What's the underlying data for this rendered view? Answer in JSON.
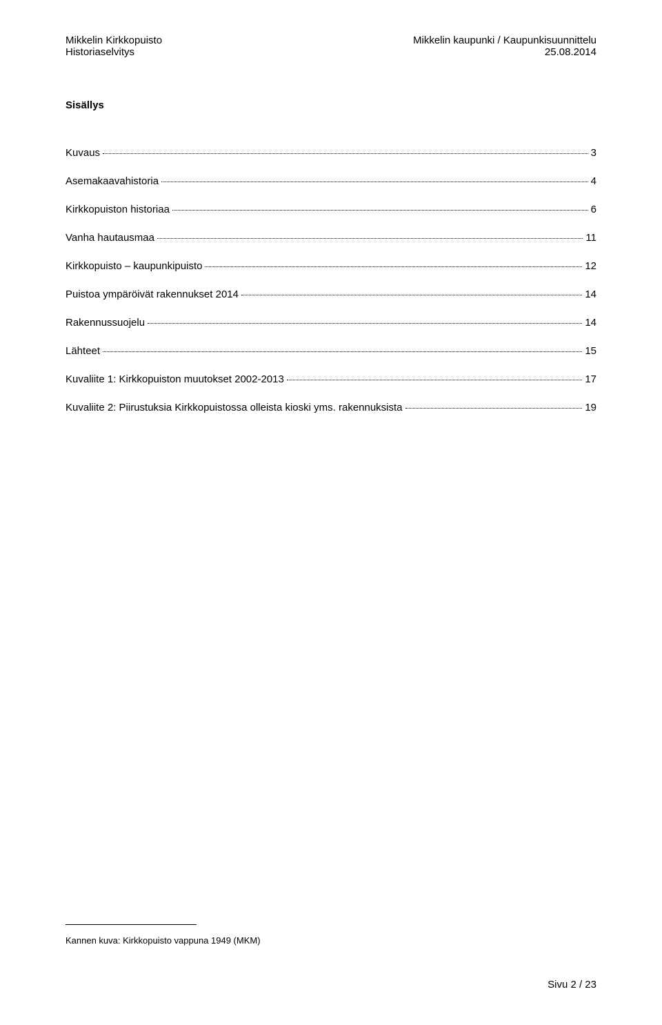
{
  "header": {
    "left_line1": "Mikkelin Kirkkopuisto",
    "left_line2": "Historiaselvitys",
    "right_line1": "Mikkelin kaupunki / Kaupunkisuunnittelu",
    "right_line2": "25.08.2014"
  },
  "toc_title": "Sisällys",
  "toc_entries": [
    {
      "label": "Kuvaus",
      "page": "3"
    },
    {
      "label": "Asemakaavahistoria",
      "page": "4"
    },
    {
      "label": "Kirkkopuiston historiaa",
      "page": "6"
    },
    {
      "label": "Vanha hautausmaa",
      "page": "11"
    },
    {
      "label": "Kirkkopuisto – kaupunkipuisto",
      "page": "12"
    },
    {
      "label": "Puistoa ympäröivät rakennukset 2014",
      "page": "14"
    },
    {
      "label": "Rakennussuojelu",
      "page": "14"
    },
    {
      "label": "Lähteet",
      "page": "15"
    },
    {
      "label": "Kuvaliite 1: Kirkkopuiston muutokset 2002-2013",
      "page": "17"
    },
    {
      "label": "Kuvaliite 2: Piirustuksia Kirkkopuistossa olleista kioski yms. rakennuksista",
      "page": "19"
    }
  ],
  "footnote": "Kannen kuva: Kirkkopuisto vappuna 1949 (MKM)",
  "page_number": "Sivu 2 / 23"
}
